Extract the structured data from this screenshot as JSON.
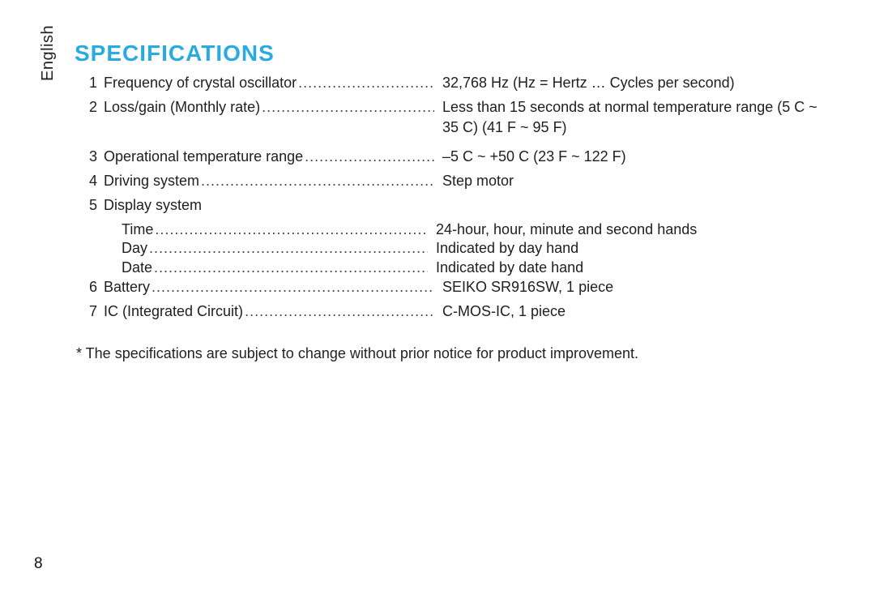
{
  "language_tab": "English",
  "title_text": "SPECIFICATIONS",
  "title_color": "#29abe2",
  "page_number": "8",
  "footnote": "* The specifications are subject to change without prior notice for product improvement.",
  "specs": [
    {
      "num": "1",
      "label": "Frequency of crystal oscillator",
      "value": "32,768 Hz (Hz = Hertz … Cycles per second)",
      "dotted": true
    },
    {
      "num": "2",
      "label": "Loss/gain (Monthly rate)",
      "value": "Less than 15 seconds at normal temperature range (5  C ~ 35  C) (41  F ~ 95  F)",
      "dotted": true
    },
    {
      "num": "3",
      "label": "Operational temperature range",
      "value": "–5  C ~ +50  C (23  F ~ 122  F)",
      "dotted": true
    },
    {
      "num": "4",
      "label": "Driving system",
      "value": "Step motor",
      "dotted": true
    },
    {
      "num": "5",
      "label": "Display system",
      "value": "",
      "dotted": false,
      "subs": [
        {
          "label": "Time",
          "value": "24-hour, hour, minute and second hands"
        },
        {
          "label": "Day",
          "value": "Indicated by day hand"
        },
        {
          "label": "Date",
          "value": "Indicated by date hand"
        }
      ]
    },
    {
      "num": "6",
      "label": "Battery",
      "value": "SEIKO SR916SW, 1 piece",
      "dotted": true
    },
    {
      "num": "7",
      "label": "IC (Integrated Circuit)",
      "value": "C-MOS-IC, 1 piece",
      "dotted": true
    }
  ]
}
